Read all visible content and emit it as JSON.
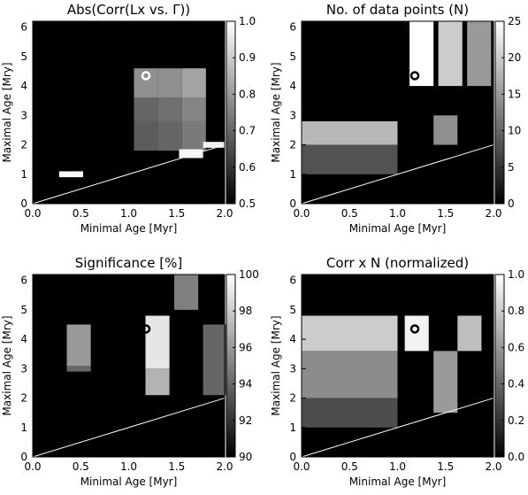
{
  "chart_data": [
    {
      "type": "heatmap",
      "title": "Abs(Corr(L<sub>x</sub> vs. Γ))",
      "xlabel": "Minimal Age [Myr]",
      "ylabel": "Maximal Age [Mry]",
      "xlim": [
        0,
        2
      ],
      "ylim": [
        0,
        6.2
      ],
      "xticks": [
        "0.0",
        "0.5",
        "1.0",
        "1.5",
        "2.0"
      ],
      "yticks": [
        "0",
        "1",
        "2",
        "3",
        "4",
        "5",
        "6"
      ],
      "colorbar": {
        "ticks": [
          "0.5",
          "0.6",
          "0.7",
          "0.8",
          "0.9",
          "1.0"
        ],
        "range": [
          0.5,
          1.0
        ]
      },
      "marker": {
        "x": 1.18,
        "y": 4.35,
        "color": "#ffffff"
      },
      "diagonal_line": "#ffffff",
      "cells": [
        [
          1.18,
          3.6,
          4.6,
          0.78
        ],
        [
          1.43,
          3.6,
          4.6,
          0.78
        ],
        [
          1.68,
          3.6,
          4.6,
          0.82
        ],
        [
          1.18,
          2.8,
          3.6,
          0.7
        ],
        [
          1.43,
          2.8,
          3.6,
          0.72
        ],
        [
          1.68,
          2.8,
          3.6,
          0.76
        ],
        [
          1.18,
          1.8,
          2.8,
          0.68
        ],
        [
          1.43,
          1.8,
          2.8,
          0.7
        ],
        [
          1.68,
          1.8,
          2.8,
          0.74
        ],
        [
          1.65,
          1.55,
          1.85,
          0.98
        ],
        [
          1.9,
          1.9,
          2.1,
          0.97
        ],
        [
          0.4,
          0.9,
          1.1,
          0.99
        ]
      ]
    },
    {
      "type": "heatmap",
      "title": "No. of data points (N)",
      "xlabel": "Minimal Age [Myr]",
      "ylabel": "Maximal Age [Mry]",
      "xlim": [
        0,
        2
      ],
      "ylim": [
        0,
        6.2
      ],
      "xticks": [
        "0.0",
        "0.5",
        "1.0",
        "1.5",
        "2.0"
      ],
      "yticks": [
        "0",
        "1",
        "2",
        "3",
        "4",
        "5",
        "6"
      ],
      "colorbar": {
        "ticks": [
          "0",
          "5",
          "10",
          "15",
          "20",
          "25"
        ],
        "range": [
          0,
          25
        ]
      },
      "marker": {
        "x": 1.18,
        "y": 4.35,
        "color": "#000000"
      },
      "diagonal_line": "#ffffff",
      "cells": [
        [
          1.25,
          4.0,
          6.2,
          25
        ],
        [
          1.55,
          4.0,
          6.2,
          20
        ],
        [
          1.85,
          4.0,
          6.2,
          15
        ],
        [
          0.5,
          2.0,
          2.8,
          18
        ],
        [
          1.5,
          2.0,
          3.0,
          14
        ],
        [
          0.5,
          1.0,
          2.0,
          8
        ]
      ]
    },
    {
      "type": "heatmap",
      "title": "Significance [%]",
      "xlabel": "Minimal Age [Myr]",
      "ylabel": "Maximal Age [Mry]",
      "xlim": [
        0,
        2
      ],
      "ylim": [
        0,
        6.2
      ],
      "xticks": [
        "0.0",
        "0.5",
        "1.0",
        "1.5",
        "2.0"
      ],
      "yticks": [
        "0",
        "1",
        "2",
        "3",
        "4",
        "5",
        "6"
      ],
      "colorbar": {
        "ticks": [
          "90",
          "92",
          "94",
          "96",
          "98",
          "100"
        ],
        "range": [
          90,
          100
        ]
      },
      "marker": {
        "x": 1.18,
        "y": 4.35,
        "color": "#000000"
      },
      "diagonal_line": "#ffffff",
      "cells": [
        [
          0.48,
          3.1,
          4.5,
          96
        ],
        [
          0.48,
          2.9,
          3.1,
          94
        ],
        [
          1.3,
          3.0,
          4.8,
          99
        ],
        [
          1.3,
          2.1,
          3.0,
          97
        ],
        [
          1.6,
          5.0,
          6.2,
          95
        ],
        [
          1.9,
          2.1,
          4.5,
          94
        ]
      ]
    },
    {
      "type": "heatmap",
      "title": "Corr x N (normalized)",
      "xlabel": "Minimal Age [Myr]",
      "ylabel": "Maximal Age [Mry]",
      "xlim": [
        0,
        2
      ],
      "ylim": [
        0,
        6.2
      ],
      "xticks": [
        "0.0",
        "0.5",
        "1.0",
        "1.5",
        "2.0"
      ],
      "yticks": [
        "0",
        "1",
        "2",
        "3",
        "4",
        "5",
        "6"
      ],
      "colorbar": {
        "ticks": [
          "0.0",
          "0.2",
          "0.4",
          "0.6",
          "0.8",
          "1.0"
        ],
        "range": [
          0,
          1
        ]
      },
      "marker": {
        "x": 1.18,
        "y": 4.35,
        "color": "#000000"
      },
      "diagonal_line": "#ffffff",
      "cells": [
        [
          0.5,
          3.6,
          4.8,
          0.8
        ],
        [
          1.2,
          3.6,
          4.8,
          0.95
        ],
        [
          1.75,
          3.6,
          4.8,
          0.75
        ],
        [
          0.5,
          2.0,
          3.6,
          0.55
        ],
        [
          1.5,
          1.5,
          3.6,
          0.6
        ],
        [
          0.5,
          1.0,
          2.0,
          0.3
        ]
      ]
    }
  ]
}
